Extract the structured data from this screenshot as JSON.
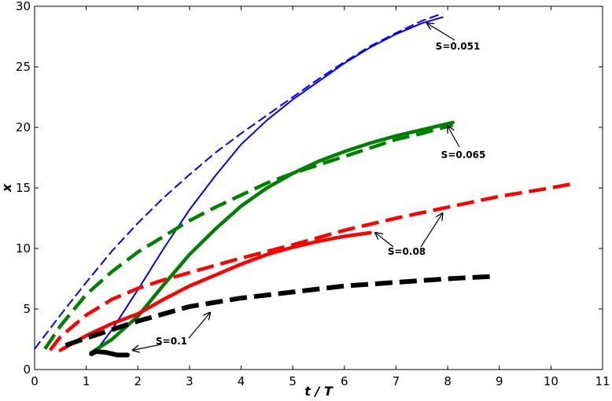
{
  "chart_data": {
    "type": "line",
    "xlabel": "t / T",
    "ylabel": "x",
    "xlim": [
      0,
      11
    ],
    "ylim": [
      0,
      30
    ],
    "xticks": [
      0,
      1,
      2,
      3,
      4,
      5,
      6,
      7,
      8,
      9,
      10,
      11
    ],
    "yticks": [
      0,
      5,
      10,
      15,
      20,
      25,
      30
    ],
    "grid": false,
    "legend": "none",
    "series": [
      {
        "color": "#0000ff",
        "style": "dashed",
        "weight": "thin",
        "x": [
          0,
          0.5,
          1,
          1.5,
          2,
          2.5,
          3,
          3.5,
          4,
          4.5,
          5,
          5.5,
          6,
          6.5,
          7,
          7.5,
          7.9
        ],
        "y": [
          1.7,
          4.5,
          7.2,
          9.8,
          12.1,
          14.2,
          16.1,
          17.9,
          19.5,
          21.0,
          22.5,
          24.0,
          25.4,
          26.7,
          27.8,
          28.8,
          29.4
        ]
      },
      {
        "color": "#0000ff",
        "style": "solid",
        "weight": "thin",
        "x": [
          1.2,
          1.5,
          2,
          2.5,
          3,
          3.5,
          4,
          4.5,
          5,
          5.5,
          6,
          6.5,
          7,
          7.5,
          7.9
        ],
        "y": [
          1.6,
          3.3,
          6.6,
          10.0,
          13.2,
          16.0,
          18.6,
          20.6,
          22.3,
          23.8,
          25.3,
          26.6,
          27.7,
          28.6,
          29.1
        ]
      },
      {
        "color": "#008000",
        "style": "dashed",
        "weight": "thick",
        "x": [
          0.2,
          0.5,
          1,
          1.5,
          2,
          2.5,
          3,
          3.5,
          4,
          4.5,
          5,
          5.5,
          6,
          6.5,
          7,
          7.5,
          8.1
        ],
        "y": [
          1.7,
          3.6,
          6.2,
          8.1,
          9.7,
          11.0,
          12.3,
          13.4,
          14.4,
          15.4,
          16.2,
          16.9,
          17.6,
          18.3,
          19.0,
          19.5,
          20.2
        ]
      },
      {
        "color": "#008000",
        "style": "solid",
        "weight": "thick",
        "x": [
          1.1,
          1.5,
          2,
          2.5,
          3,
          3.5,
          4,
          4.5,
          5,
          5.5,
          6,
          6.5,
          7,
          7.5,
          8.1
        ],
        "y": [
          1.4,
          2.5,
          4.4,
          7.0,
          9.5,
          11.6,
          13.5,
          15.0,
          16.2,
          17.2,
          18.0,
          18.7,
          19.3,
          19.8,
          20.4
        ]
      },
      {
        "color": "#ff0000",
        "style": "dashed",
        "weight": "thick",
        "x": [
          0.3,
          0.5,
          1,
          1.5,
          2,
          2.5,
          3,
          4,
          5,
          6,
          7,
          8,
          9,
          10,
          10.5
        ],
        "y": [
          1.6,
          2.7,
          4.5,
          5.8,
          6.7,
          7.4,
          8.0,
          9.2,
          10.3,
          11.5,
          12.5,
          13.4,
          14.3,
          15.0,
          15.4
        ]
      },
      {
        "color": "#ff0000",
        "style": "solid",
        "weight": "thick",
        "x": [
          0.5,
          1,
          1.5,
          2,
          2.5,
          3,
          3.5,
          4,
          4.5,
          5,
          5.5,
          6,
          6.5
        ],
        "y": [
          1.6,
          2.8,
          3.8,
          4.6,
          5.8,
          6.9,
          7.8,
          8.7,
          9.5,
          10.1,
          10.6,
          11.0,
          11.3
        ]
      },
      {
        "color": "#000000",
        "style": "dashed",
        "weight": "thicker",
        "x": [
          0.6,
          1,
          1.5,
          2,
          2.5,
          3,
          4,
          5,
          6,
          7,
          8,
          8.9
        ],
        "y": [
          2.0,
          2.6,
          3.3,
          4.0,
          4.6,
          5.2,
          5.9,
          6.4,
          6.9,
          7.2,
          7.5,
          7.7
        ]
      },
      {
        "color": "#000000",
        "style": "solid",
        "weight": "thicker",
        "x": [
          1.1,
          1.2,
          1.3,
          1.4,
          1.5,
          1.6,
          1.8
        ],
        "y": [
          1.3,
          1.5,
          1.45,
          1.4,
          1.3,
          1.2,
          1.2
        ]
      }
    ],
    "annotations": [
      {
        "text": "S=0.051",
        "arrow_to": [
          7.6,
          28.6
        ]
      },
      {
        "text": "S=0.065",
        "arrow_to": [
          8.0,
          20.1
        ]
      },
      {
        "text": "S=0.08",
        "arrow_to": [
          6.6,
          11.3
        ]
      },
      {
        "text": "S=0.08",
        "arrow_to": [
          7.9,
          12.9
        ]
      },
      {
        "text": "S=0.1",
        "arrow_to": [
          1.9,
          1.6
        ]
      },
      {
        "text": "S=0.1",
        "arrow_to": [
          3.4,
          4.7
        ]
      }
    ]
  }
}
